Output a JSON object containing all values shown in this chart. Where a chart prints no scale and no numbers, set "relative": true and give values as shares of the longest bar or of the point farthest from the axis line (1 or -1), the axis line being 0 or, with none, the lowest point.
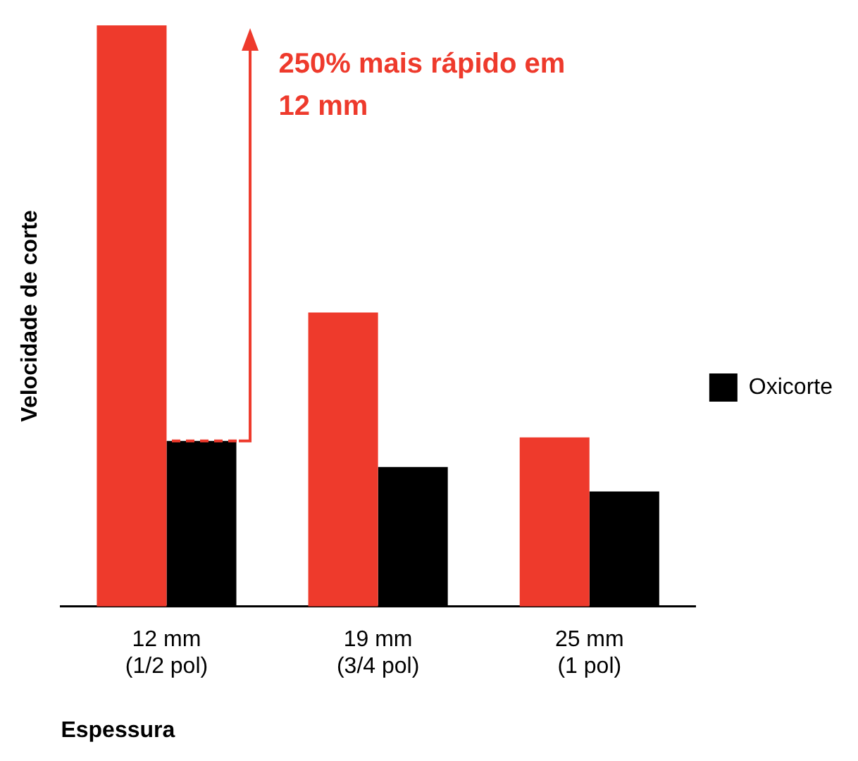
{
  "chart_data": {
    "type": "bar",
    "xlabel": "Espessura",
    "ylabel": "Velocidade de corte",
    "categories": [
      "12 mm\n(1/2 pol)",
      "19 mm\n(3/4 pol)",
      "25 mm\n(1 pol)"
    ],
    "relative": true,
    "legend": "right",
    "grid": false,
    "series": [
      {
        "color": "#ee3a2c",
        "values": [
          1,
          0.506,
          0.291
        ]
      },
      {
        "name": "Oxicorte",
        "color": "#000000",
        "values": [
          0.285,
          0.24,
          0.198
        ]
      }
    ],
    "annotations": [
      "250% mais rápido em\n12 mm"
    ]
  }
}
